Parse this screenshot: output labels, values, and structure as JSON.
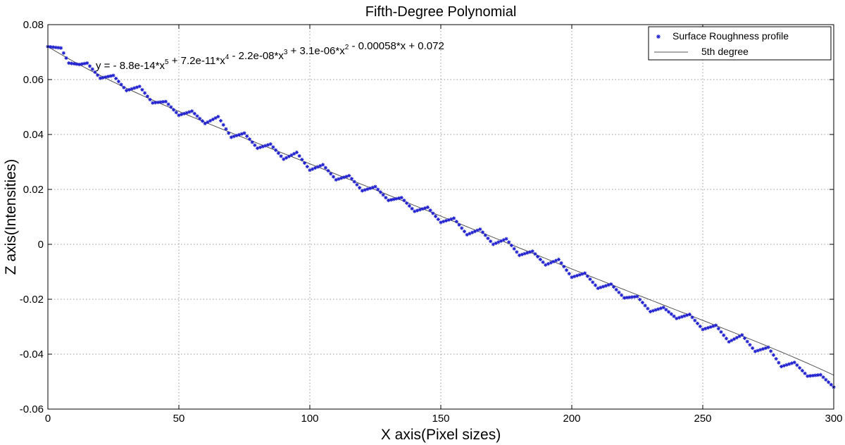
{
  "chart_data": {
    "type": "scatter",
    "title": "Fifth-Degree Polynomial",
    "xlabel": "X axis(Pixel sizes)",
    "ylabel": "Z axis(Intensities)",
    "xlim": [
      0,
      300
    ],
    "ylim": [
      -0.06,
      0.08
    ],
    "x_ticks": [
      0,
      50,
      100,
      150,
      200,
      250,
      300
    ],
    "x_tick_labels": [
      "0",
      "50",
      "100",
      "150",
      "200",
      "250",
      "300"
    ],
    "y_ticks": [
      -0.06,
      -0.04,
      -0.02,
      0,
      0.02,
      0.04,
      0.06,
      0.08
    ],
    "y_tick_labels": [
      "-0.06",
      "-0.04",
      "-0.02",
      "0",
      "0.02",
      "0.04",
      "0.06",
      "0.08"
    ],
    "grid": true,
    "legend_position": "top-right",
    "annotation": {
      "prefix": "y = - 8.8e-14*x",
      "terms": [
        {
          "base": "y = - 8.8e-14*x",
          "sup": "5"
        },
        {
          "base": " + 7.2e-11*x",
          "sup": "4"
        },
        {
          "base": " - 2.2e-08*x",
          "sup": "3"
        },
        {
          "base": " + 3.1e-06*x",
          "sup": "2"
        },
        {
          "base": " - 0.00058*x + 0.072",
          "sup": ""
        }
      ]
    },
    "series": [
      {
        "name": "Surface Roughness profile",
        "kind": "scatter",
        "marker": "asterisk",
        "color": "#1f1fcf",
        "x_start": 0,
        "x_end": 300,
        "x_step": 1,
        "period": 10.3,
        "ripple_amplitude": 0.0016,
        "trend_coefficients": [
          0.072,
          -0.00058,
          3.1e-06,
          -2.2e-08,
          7.2e-11,
          -8.8e-14
        ],
        "anchor_points": [
          [
            0,
            0.072
          ],
          [
            5,
            0.0715
          ],
          [
            8,
            0.066
          ],
          [
            12,
            0.0655
          ],
          [
            15,
            0.066
          ],
          [
            20,
            0.0605
          ],
          [
            25,
            0.0615
          ],
          [
            30,
            0.056
          ],
          [
            35,
            0.0575
          ],
          [
            40,
            0.0515
          ],
          [
            45,
            0.052
          ],
          [
            50,
            0.047
          ],
          [
            55,
            0.0485
          ],
          [
            60,
            0.044
          ],
          [
            65,
            0.0465
          ],
          [
            70,
            0.039
          ],
          [
            75,
            0.0405
          ],
          [
            80,
            0.035
          ],
          [
            85,
            0.0365
          ],
          [
            90,
            0.031
          ],
          [
            95,
            0.0335
          ],
          [
            100,
            0.027
          ],
          [
            105,
            0.029
          ],
          [
            110,
            0.0235
          ],
          [
            115,
            0.025
          ],
          [
            120,
            0.0195
          ],
          [
            125,
            0.021
          ],
          [
            130,
            0.016
          ],
          [
            135,
            0.017
          ],
          [
            140,
            0.012
          ],
          [
            145,
            0.0135
          ],
          [
            150,
            0.008
          ],
          [
            155,
            0.0095
          ],
          [
            160,
            0.0035
          ],
          [
            165,
            0.0055
          ],
          [
            170,
            0.0
          ],
          [
            175,
            0.002
          ],
          [
            180,
            -0.004
          ],
          [
            185,
            -0.0025
          ],
          [
            190,
            -0.0075
          ],
          [
            195,
            -0.0055
          ],
          [
            200,
            -0.012
          ],
          [
            205,
            -0.0105
          ],
          [
            210,
            -0.016
          ],
          [
            215,
            -0.0145
          ],
          [
            220,
            -0.0195
          ],
          [
            225,
            -0.019
          ],
          [
            230,
            -0.0245
          ],
          [
            235,
            -0.023
          ],
          [
            240,
            -0.027
          ],
          [
            245,
            -0.0255
          ],
          [
            250,
            -0.031
          ],
          [
            255,
            -0.0295
          ],
          [
            260,
            -0.0355
          ],
          [
            265,
            -0.033
          ],
          [
            270,
            -0.039
          ],
          [
            275,
            -0.0375
          ],
          [
            280,
            -0.0445
          ],
          [
            285,
            -0.043
          ],
          [
            290,
            -0.048
          ],
          [
            295,
            -0.0475
          ],
          [
            300,
            -0.052
          ]
        ]
      },
      {
        "name": "5th degree",
        "kind": "line",
        "color": "#555555",
        "coefficients": [
          0.072,
          -0.00058,
          3.1e-06,
          -2.2e-08,
          7.2e-11,
          -8.8e-14
        ]
      }
    ]
  }
}
